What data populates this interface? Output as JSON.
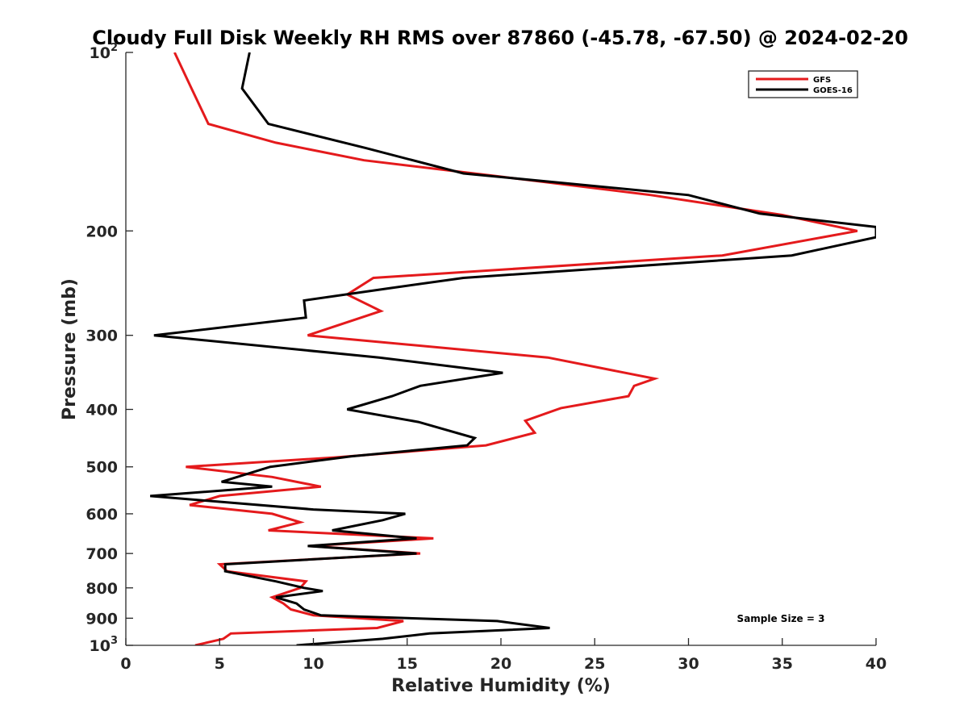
{
  "chart_data": {
    "type": "line",
    "orientation": "vertical-profile",
    "title": "Cloudy Full Disk Weekly RH RMS over 87860 (-45.78, -67.50) @ 2024-02-20",
    "xlabel": "Relative Humidity (%)",
    "ylabel": "Pressure (mb)",
    "xlim": [
      0,
      40
    ],
    "ylim": [
      100,
      1000
    ],
    "y_scale": "log",
    "y_reversed": true,
    "x_ticks": [
      0,
      5,
      10,
      15,
      20,
      25,
      30,
      35,
      40
    ],
    "y_ticks": [
      {
        "value": 100,
        "base": "10",
        "exp": "2"
      },
      {
        "value": 200,
        "label": "200"
      },
      {
        "value": 300,
        "label": "300"
      },
      {
        "value": 400,
        "label": "400"
      },
      {
        "value": 500,
        "label": "500"
      },
      {
        "value": 600,
        "label": "600"
      },
      {
        "value": 700,
        "label": "700"
      },
      {
        "value": 800,
        "label": "800"
      },
      {
        "value": 900,
        "label": "900"
      },
      {
        "value": 1000,
        "base": "10",
        "exp": "3"
      }
    ],
    "grid": false,
    "legend_position": "top-right",
    "annotation": "Sample Size = 3",
    "series": [
      {
        "name": "GFS",
        "color": "#e41a1c",
        "points": [
          [
            2.6,
            100
          ],
          [
            3.5,
            115
          ],
          [
            4.4,
            132
          ],
          [
            8.0,
            142
          ],
          [
            12.7,
            152
          ],
          [
            20.0,
            162
          ],
          [
            28.0,
            174
          ],
          [
            35.0,
            188
          ],
          [
            39.0,
            200
          ],
          [
            31.8,
            220
          ],
          [
            13.2,
            240
          ],
          [
            11.8,
            256
          ],
          [
            13.6,
            273
          ],
          [
            9.7,
            300
          ],
          [
            22.5,
            327
          ],
          [
            28.2,
            355
          ],
          [
            27.1,
            365
          ],
          [
            26.8,
            380
          ],
          [
            23.2,
            398
          ],
          [
            21.3,
            418
          ],
          [
            21.8,
            438
          ],
          [
            19.2,
            460
          ],
          [
            11.2,
            482
          ],
          [
            3.2,
            500
          ],
          [
            7.8,
            520
          ],
          [
            10.4,
            540
          ],
          [
            5.0,
            560
          ],
          [
            3.4,
            580
          ],
          [
            7.8,
            600
          ],
          [
            9.3,
            620
          ],
          [
            7.6,
            640
          ],
          [
            16.4,
            660
          ],
          [
            9.8,
            680
          ],
          [
            15.7,
            700
          ],
          [
            5.0,
            730
          ],
          [
            5.4,
            750
          ],
          [
            9.6,
            780
          ],
          [
            9.3,
            800
          ],
          [
            7.8,
            830
          ],
          [
            8.4,
            850
          ],
          [
            8.8,
            870
          ],
          [
            10.0,
            890
          ],
          [
            14.8,
            910
          ],
          [
            13.4,
            935
          ],
          [
            5.6,
            955
          ],
          [
            5.2,
            975
          ],
          [
            3.7,
            1000
          ]
        ]
      },
      {
        "name": "GOES-16",
        "color": "#000000",
        "points": [
          [
            6.6,
            100
          ],
          [
            6.2,
            115
          ],
          [
            7.6,
            132
          ],
          [
            12.8,
            145
          ],
          [
            18.0,
            160
          ],
          [
            30.0,
            174
          ],
          [
            33.8,
            187
          ],
          [
            40.0,
            197
          ],
          [
            40.0,
            205
          ],
          [
            35.5,
            220
          ],
          [
            18.0,
            240
          ],
          [
            14.0,
            250
          ],
          [
            9.5,
            262
          ],
          [
            9.6,
            280
          ],
          [
            1.5,
            300
          ],
          [
            13.5,
            327
          ],
          [
            20.1,
            347
          ],
          [
            15.7,
            365
          ],
          [
            14.2,
            380
          ],
          [
            11.8,
            400
          ],
          [
            15.6,
            420
          ],
          [
            18.6,
            447
          ],
          [
            18.2,
            460
          ],
          [
            12.0,
            480
          ],
          [
            7.7,
            500
          ],
          [
            5.1,
            530
          ],
          [
            7.8,
            540
          ],
          [
            1.3,
            560
          ],
          [
            10.0,
            590
          ],
          [
            14.9,
            600
          ],
          [
            13.7,
            615
          ],
          [
            11.0,
            640
          ],
          [
            15.5,
            660
          ],
          [
            9.7,
            680
          ],
          [
            15.5,
            700
          ],
          [
            5.3,
            730
          ],
          [
            5.3,
            750
          ],
          [
            8.0,
            780
          ],
          [
            9.5,
            800
          ],
          [
            10.5,
            810
          ],
          [
            8.0,
            830
          ],
          [
            9.1,
            850
          ],
          [
            9.5,
            870
          ],
          [
            10.4,
            890
          ],
          [
            19.8,
            910
          ],
          [
            22.6,
            935
          ],
          [
            16.2,
            955
          ],
          [
            13.7,
            975
          ],
          [
            9.1,
            1000
          ]
        ]
      }
    ]
  }
}
